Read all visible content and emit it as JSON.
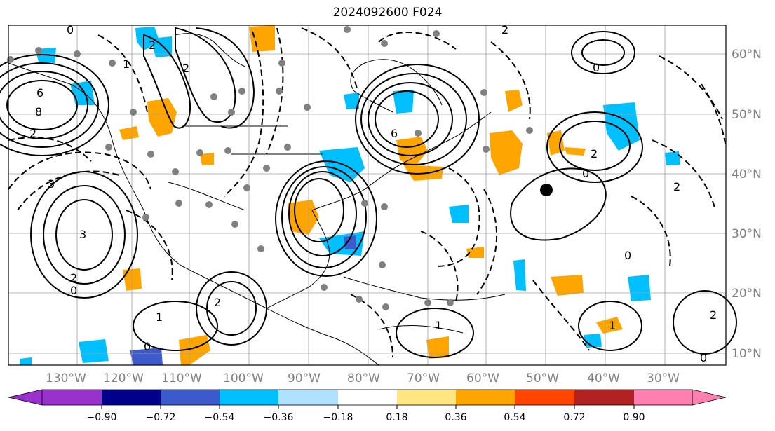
{
  "title": "2024092600 F024",
  "lon_labels": [
    "130°W",
    "120°W",
    "110°W",
    "100°W",
    "90°W",
    "80°W",
    "70°W",
    "60°W",
    "50°W",
    "40°W",
    "30°W"
  ],
  "lat_labels": [
    "60°N",
    "50°N",
    "40°N",
    "30°N",
    "20°N",
    "10°N"
  ],
  "colorbar": {
    "tick_labels": [
      "−0.90",
      "−0.72",
      "−0.54",
      "−0.36",
      "−0.18",
      "0.18",
      "0.36",
      "0.54",
      "0.72",
      "0.90"
    ],
    "colors": [
      "#9932cc",
      "#00008b",
      "#3d5acc",
      "#00bfff",
      "#b0e0ff",
      "#ffffff",
      "#ffe680",
      "#ffa500",
      "#ff4500",
      "#b22222",
      "#ff80b0"
    ]
  },
  "contour_labels": [
    "0",
    "2",
    "6",
    "8",
    "3",
    "2",
    "1",
    "0",
    "2",
    "6",
    "3",
    "2",
    "1",
    "2",
    "2",
    "0",
    "1",
    "0",
    "2",
    "0",
    "0",
    "2",
    "1",
    "2",
    "0"
  ],
  "colors": {
    "warm": "#ffa500",
    "cool": "#00bfff",
    "dark_cool": "#3d5acc"
  }
}
